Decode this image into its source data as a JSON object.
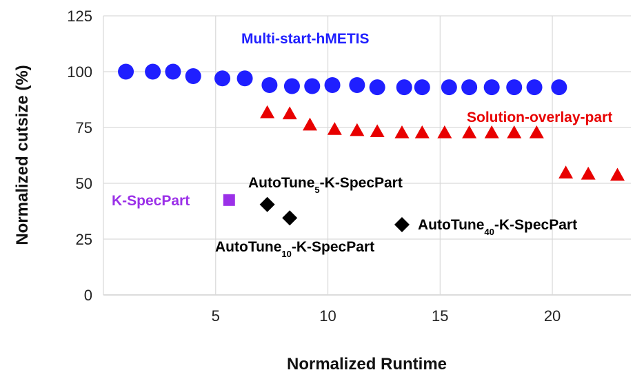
{
  "chart_data": {
    "type": "scatter",
    "title": "",
    "xlabel": "Normalized Runtime",
    "ylabel": "Normalized cutsize (%)",
    "xlim": [
      0,
      23.5
    ],
    "ylim": [
      0,
      125
    ],
    "x_ticks": [
      "5",
      "10",
      "15",
      "20"
    ],
    "x_tick_values": [
      5,
      10,
      15,
      20
    ],
    "y_ticks": [
      "0",
      "25",
      "50",
      "75",
      "100",
      "125"
    ],
    "y_tick_values": [
      0,
      25,
      50,
      75,
      100,
      125
    ],
    "grid": "vertical and horizontal",
    "legend": "none",
    "series": [
      {
        "name": "Multi-start-hMETIS",
        "marker": "circle",
        "color": "#1f1fff",
        "x": [
          1.0,
          2.2,
          3.1,
          4.0,
          5.3,
          6.3,
          7.4,
          8.4,
          9.3,
          10.2,
          11.3,
          12.2,
          13.4,
          14.2,
          15.4,
          16.3,
          17.3,
          18.3,
          19.2,
          20.3
        ],
        "y": [
          100,
          100,
          100,
          98,
          97,
          97,
          94,
          93.5,
          93.5,
          94,
          94,
          93,
          93,
          93,
          93,
          93,
          93,
          93,
          93,
          93
        ]
      },
      {
        "name": "Solution-overlay-part",
        "marker": "triangle",
        "color": "#e80000",
        "x": [
          7.3,
          8.3,
          9.2,
          10.3,
          11.3,
          12.2,
          13.3,
          14.2,
          15.2,
          16.3,
          17.3,
          18.3,
          19.3,
          20.6,
          21.6,
          22.9
        ],
        "y": [
          81.5,
          81,
          76,
          74,
          73.5,
          73,
          72.5,
          72.5,
          72.5,
          72.5,
          72.5,
          72.5,
          72.5,
          54.5,
          54,
          53.5
        ]
      },
      {
        "name": "K-SpecPart",
        "marker": "square",
        "color": "#9b30e8",
        "x": [
          5.6
        ],
        "y": [
          42.5
        ]
      },
      {
        "name": "AutoTune-K-SpecPart",
        "marker": "diamond",
        "color": "#000000",
        "x": [
          7.3,
          8.3,
          13.3
        ],
        "y": [
          40.5,
          34.5,
          31.5
        ]
      }
    ],
    "annotations": [
      {
        "id": "hmetis",
        "text": "Multi-start-hMETIS",
        "sub": "",
        "suffix": "",
        "color": "#1f1fff"
      },
      {
        "id": "overlay",
        "text": "Solution-overlay-part",
        "sub": "",
        "suffix": "",
        "color": "#e80000"
      },
      {
        "id": "kspec",
        "text": "K-SpecPart",
        "sub": "",
        "suffix": "",
        "color": "#9b30e8"
      },
      {
        "id": "auto5",
        "text": "AutoTune",
        "sub": "5",
        "suffix": "-K-SpecPart",
        "color": "#000000"
      },
      {
        "id": "auto10",
        "text": "AutoTune",
        "sub": "10",
        "suffix": "-K-SpecPart",
        "color": "#000000"
      },
      {
        "id": "auto40",
        "text": "AutoTune",
        "sub": "40",
        "suffix": "-K-SpecPart",
        "color": "#000000"
      }
    ]
  }
}
